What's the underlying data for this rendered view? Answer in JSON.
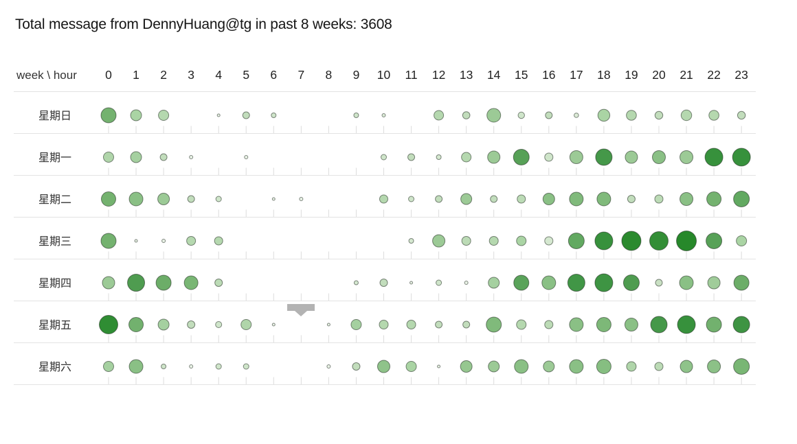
{
  "title": "Total message from DennyHuang@tg in past 8 weeks: 3608",
  "header": {
    "corner_label": "week \\ hour",
    "hours": [
      "0",
      "1",
      "2",
      "3",
      "4",
      "5",
      "6",
      "7",
      "8",
      "9",
      "10",
      "11",
      "12",
      "13",
      "14",
      "15",
      "16",
      "17",
      "18",
      "19",
      "20",
      "21",
      "22",
      "23"
    ]
  },
  "scroll_marker": {
    "color": "#b3b3b3"
  },
  "chart_data": {
    "type": "punchcard",
    "title": "Total message from DennyHuang@tg in past 8 weeks: 3608",
    "total_messages": 3608,
    "xlabel": "hour",
    "ylabel": "week",
    "x_labels": [
      "0",
      "1",
      "2",
      "3",
      "4",
      "5",
      "6",
      "7",
      "8",
      "9",
      "10",
      "11",
      "12",
      "13",
      "14",
      "15",
      "16",
      "17",
      "18",
      "19",
      "20",
      "21",
      "22",
      "23"
    ],
    "y_labels": [
      "星期日",
      "星期一",
      "星期二",
      "星期三",
      "星期四",
      "星期五",
      "星期六"
    ],
    "encoding_note": "bubble radius (px) and green fill intensity encode message count; exact counts are not labeled on the chart",
    "point_columns": [
      "hour",
      "radius_px",
      "fill"
    ],
    "rows": [
      {
        "day": "星期日",
        "points": [
          [
            0,
            11,
            "#74b26f"
          ],
          [
            1,
            8,
            "#aad4a4"
          ],
          [
            2,
            7.5,
            "#b5d8af"
          ],
          [
            4,
            2,
            "#e9f2e6"
          ],
          [
            5,
            5,
            "#c2ddbc"
          ],
          [
            6,
            3.5,
            "#cfe5ca"
          ],
          [
            9,
            3.5,
            "#cfe5ca"
          ],
          [
            10,
            2.5,
            "#dcebd7"
          ],
          [
            12,
            7,
            "#b5d8af"
          ],
          [
            13,
            5.3,
            "#c2ddbc"
          ],
          [
            14,
            10,
            "#9cca96"
          ],
          [
            15,
            4.7,
            "#cfe5ca"
          ],
          [
            16,
            5,
            "#c2ddbc"
          ],
          [
            17,
            3.3,
            "#dcebd7"
          ],
          [
            18,
            8.7,
            "#aad4a4"
          ],
          [
            19,
            7.3,
            "#b5d8af"
          ],
          [
            20,
            5.7,
            "#c2ddbc"
          ],
          [
            21,
            7.7,
            "#b5d8af"
          ],
          [
            22,
            7.3,
            "#b5d8af"
          ],
          [
            23,
            5.7,
            "#c2ddbc"
          ]
        ]
      },
      {
        "day": "星期一",
        "points": [
          [
            0,
            7.5,
            "#b0d5aa"
          ],
          [
            1,
            8,
            "#a5d0a0"
          ],
          [
            2,
            5,
            "#c2ddbc"
          ],
          [
            3,
            2.5,
            "#e9f2e6"
          ],
          [
            5,
            2.5,
            "#e9f2e6"
          ],
          [
            10,
            4,
            "#cfe5ca"
          ],
          [
            11,
            5,
            "#c2ddbc"
          ],
          [
            12,
            3.5,
            "#d5e8d0"
          ],
          [
            13,
            7,
            "#b5d8af"
          ],
          [
            14,
            9,
            "#9cca96"
          ],
          [
            15,
            11.5,
            "#57a157"
          ],
          [
            16,
            6,
            "#cfe5ca"
          ],
          [
            17,
            9.5,
            "#9cca96"
          ],
          [
            18,
            12,
            "#459849"
          ],
          [
            19,
            9,
            "#9cca96"
          ],
          [
            20,
            9.5,
            "#8ac085"
          ],
          [
            21,
            9.5,
            "#9cca96"
          ],
          [
            22,
            13,
            "#37913c"
          ],
          [
            23,
            13,
            "#37913c"
          ]
        ]
      },
      {
        "day": "星期二",
        "points": [
          [
            0,
            10.5,
            "#74b26f"
          ],
          [
            1,
            10,
            "#8ac085"
          ],
          [
            2,
            8.5,
            "#9cca96"
          ],
          [
            3,
            5,
            "#c2ddbc"
          ],
          [
            4,
            4,
            "#cfe5ca"
          ],
          [
            6,
            2,
            "#e9f2e6"
          ],
          [
            7,
            2.5,
            "#e9f2e6"
          ],
          [
            10,
            6,
            "#b5d8af"
          ],
          [
            11,
            4,
            "#cfe5ca"
          ],
          [
            12,
            5,
            "#c2ddbc"
          ],
          [
            13,
            8,
            "#9cca96"
          ],
          [
            14,
            5,
            "#c2ddbc"
          ],
          [
            15,
            6,
            "#bcdbb6"
          ],
          [
            16,
            8.5,
            "#8ac085"
          ],
          [
            17,
            10,
            "#80ba7b"
          ],
          [
            18,
            10,
            "#80ba7b"
          ],
          [
            19,
            5.5,
            "#c2ddbc"
          ],
          [
            20,
            6,
            "#bcdbb6"
          ],
          [
            21,
            9.5,
            "#8ac085"
          ],
          [
            22,
            10.5,
            "#74b26f"
          ],
          [
            23,
            11.5,
            "#62a961"
          ]
        ]
      },
      {
        "day": "星期三",
        "points": [
          [
            0,
            11,
            "#74b26f"
          ],
          [
            1,
            2,
            "#e9f2e6"
          ],
          [
            2,
            2.5,
            "#e9f2e6"
          ],
          [
            3,
            6.5,
            "#b5d8af"
          ],
          [
            4,
            6,
            "#b5d8af"
          ],
          [
            11,
            3.5,
            "#d5e8d0"
          ],
          [
            12,
            9,
            "#9cca96"
          ],
          [
            13,
            6.5,
            "#bcdbb6"
          ],
          [
            14,
            6.5,
            "#b5d8af"
          ],
          [
            15,
            7,
            "#aad4a4"
          ],
          [
            16,
            6,
            "#d5e8d0"
          ],
          [
            17,
            11.5,
            "#62a961"
          ],
          [
            18,
            13,
            "#37913c"
          ],
          [
            19,
            14,
            "#2b8a2e"
          ],
          [
            20,
            13.5,
            "#338e36"
          ],
          [
            21,
            14.5,
            "#27882a"
          ],
          [
            22,
            11.5,
            "#57a157"
          ],
          [
            23,
            7.5,
            "#aad4a4"
          ]
        ]
      },
      {
        "day": "星期四",
        "points": [
          [
            0,
            9,
            "#9cca96"
          ],
          [
            1,
            12.5,
            "#4f9c50"
          ],
          [
            2,
            11,
            "#6cad68"
          ],
          [
            3,
            10,
            "#79b674"
          ],
          [
            4,
            5.5,
            "#bcdbb6"
          ],
          [
            9,
            3,
            "#d5e8d0"
          ],
          [
            10,
            5.5,
            "#c2ddbc"
          ],
          [
            11,
            2,
            "#e9f2e6"
          ],
          [
            12,
            4,
            "#cfe5ca"
          ],
          [
            13,
            2.5,
            "#e9f2e6"
          ],
          [
            14,
            8,
            "#a5d0a0"
          ],
          [
            15,
            11,
            "#5aa35a"
          ],
          [
            16,
            10,
            "#8ac085"
          ],
          [
            17,
            12.5,
            "#419646"
          ],
          [
            18,
            13,
            "#3e9443"
          ],
          [
            19,
            11.5,
            "#4f9c50"
          ],
          [
            20,
            5,
            "#c9e0c3"
          ],
          [
            21,
            10,
            "#8ac085"
          ],
          [
            22,
            9,
            "#a0cc9a"
          ],
          [
            23,
            11,
            "#6cad68"
          ]
        ]
      },
      {
        "day": "星期五",
        "points": [
          [
            0,
            13.5,
            "#2f8d33"
          ],
          [
            1,
            10.5,
            "#72b16e"
          ],
          [
            2,
            8,
            "#a5d0a0"
          ],
          [
            3,
            5.5,
            "#c2ddbc"
          ],
          [
            4,
            4.5,
            "#cfe5ca"
          ],
          [
            5,
            7.5,
            "#b0d5aa"
          ],
          [
            6,
            2,
            "#e9f2e6"
          ],
          [
            8,
            2,
            "#e9f2e6"
          ],
          [
            9,
            7.5,
            "#a5d0a0"
          ],
          [
            10,
            6.5,
            "#b5d8af"
          ],
          [
            11,
            6.5,
            "#b5d8af"
          ],
          [
            12,
            5,
            "#c2ddbc"
          ],
          [
            13,
            5,
            "#c2ddbc"
          ],
          [
            14,
            11,
            "#80ba7b"
          ],
          [
            15,
            7,
            "#b5d8af"
          ],
          [
            16,
            6,
            "#bcdbb6"
          ],
          [
            17,
            10,
            "#8ac085"
          ],
          [
            18,
            10.5,
            "#7db878"
          ],
          [
            19,
            9.5,
            "#8ac085"
          ],
          [
            20,
            12,
            "#459849"
          ],
          [
            21,
            13,
            "#37913c"
          ],
          [
            22,
            11,
            "#72b16e"
          ],
          [
            23,
            12,
            "#3e9443"
          ]
        ]
      },
      {
        "day": "星期六",
        "points": [
          [
            0,
            7.5,
            "#a5d0a0"
          ],
          [
            1,
            10,
            "#8ac085"
          ],
          [
            2,
            3.5,
            "#cfe5ca"
          ],
          [
            3,
            2.5,
            "#e9f2e6"
          ],
          [
            4,
            4,
            "#cfe5ca"
          ],
          [
            5,
            4,
            "#cfe5ca"
          ],
          [
            8,
            2.5,
            "#e9f2e6"
          ],
          [
            9,
            5.5,
            "#c2ddbc"
          ],
          [
            10,
            9,
            "#8fc38a"
          ],
          [
            11,
            7.5,
            "#aad4a4"
          ],
          [
            12,
            2,
            "#e9f2e6"
          ],
          [
            13,
            8.5,
            "#96c790"
          ],
          [
            14,
            8,
            "#9cca96"
          ],
          [
            15,
            10,
            "#8ac085"
          ],
          [
            16,
            8,
            "#9cca96"
          ],
          [
            17,
            10,
            "#8ac085"
          ],
          [
            18,
            10.5,
            "#86be81"
          ],
          [
            19,
            7,
            "#b0d5aa"
          ],
          [
            20,
            6,
            "#bcdbb6"
          ],
          [
            21,
            9,
            "#8fc38a"
          ],
          [
            22,
            9.5,
            "#8cc187"
          ],
          [
            23,
            11.5,
            "#79b674"
          ]
        ]
      }
    ]
  }
}
